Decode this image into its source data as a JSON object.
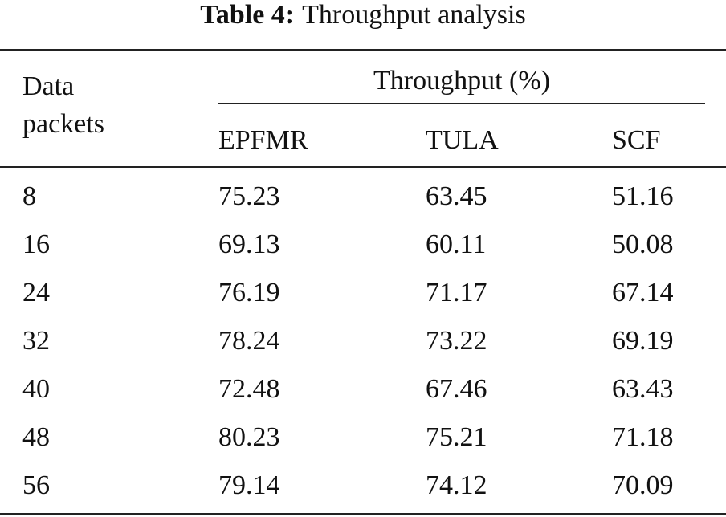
{
  "caption": {
    "label": "Table 4:",
    "title": "Throughput analysis"
  },
  "table": {
    "row_header": "Data packets",
    "group_header": "Throughput (%)",
    "columns": [
      "EPFMR",
      "TULA",
      "SCF"
    ],
    "rows": [
      [
        8,
        75.23,
        63.45,
        51.16
      ],
      [
        16,
        69.13,
        60.11,
        50.08
      ],
      [
        24,
        76.19,
        71.17,
        67.14
      ],
      [
        32,
        78.24,
        73.22,
        69.19
      ],
      [
        40,
        72.48,
        67.46,
        63.43
      ],
      [
        48,
        80.23,
        75.21,
        71.18
      ],
      [
        56,
        79.14,
        74.12,
        70.09
      ]
    ]
  }
}
